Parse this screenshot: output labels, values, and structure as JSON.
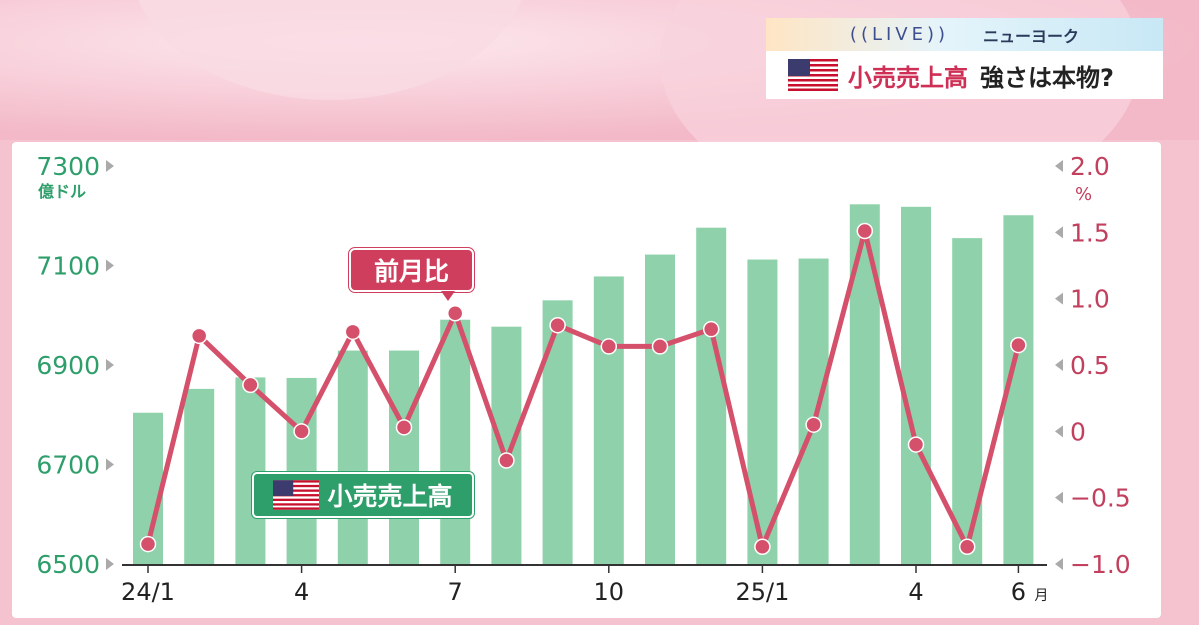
{
  "header": {
    "live": "((LIVE))",
    "location": "ニューヨーク",
    "title_main": "小売売上高",
    "title_sub": "強さは本物?"
  },
  "colors": {
    "bar": "#8fd1aa",
    "line": "#d4506b",
    "left_axis": "#2e9e6b",
    "right_axis": "#c2405e",
    "background": "#f5c6d1"
  },
  "icons": [
    "us-flag-icon",
    "tick-arrow-icon"
  ],
  "chart_data": {
    "type": "bar",
    "categories": [
      "24/1",
      "24/2",
      "24/3",
      "24/4",
      "24/5",
      "24/6",
      "24/7",
      "24/8",
      "24/9",
      "24/10",
      "24/11",
      "24/12",
      "25/1",
      "25/2",
      "25/3",
      "25/4",
      "25/5",
      "25/6"
    ],
    "x_tick_labels": [
      "24/1",
      "",
      "",
      "4",
      "",
      "",
      "7",
      "",
      "",
      "10",
      "",
      "",
      "25/1",
      "",
      "",
      "4",
      "",
      "6"
    ],
    "x_unit": "月",
    "series": [
      {
        "name": "小売売上高",
        "type": "bar",
        "axis": "left",
        "values": [
          6804,
          6852,
          6875,
          6874,
          6929,
          6929,
          6991,
          6977,
          7030,
          7078,
          7122,
          7176,
          7112,
          7114,
          7223,
          7218,
          7155,
          7201
        ]
      },
      {
        "name": "前月比",
        "type": "line",
        "axis": "right",
        "values": [
          -0.85,
          0.72,
          0.35,
          0.0,
          0.75,
          0.03,
          0.89,
          -0.22,
          0.8,
          0.64,
          0.64,
          0.77,
          -0.87,
          0.05,
          1.51,
          -0.1,
          -0.87,
          0.65
        ]
      }
    ],
    "y_left": {
      "label": "億ドル",
      "ylim": [
        6500,
        7300
      ],
      "ticks": [
        "7300",
        "7100",
        "6900",
        "6700",
        "6500"
      ],
      "tick_values": [
        7300,
        7100,
        6900,
        6700,
        6500
      ]
    },
    "y_right": {
      "label": "%",
      "ylim": [
        -1.0,
        2.0
      ],
      "ticks": [
        "2.0",
        "1.5",
        "1.0",
        "0.5",
        "0",
        "−0.5",
        "−1.0"
      ],
      "tick_values": [
        2.0,
        1.5,
        1.0,
        0.5,
        0,
        -0.5,
        -1.0
      ]
    },
    "grid": false,
    "labels": {
      "line_label": "前月比",
      "bar_label": "小売売上高"
    }
  }
}
